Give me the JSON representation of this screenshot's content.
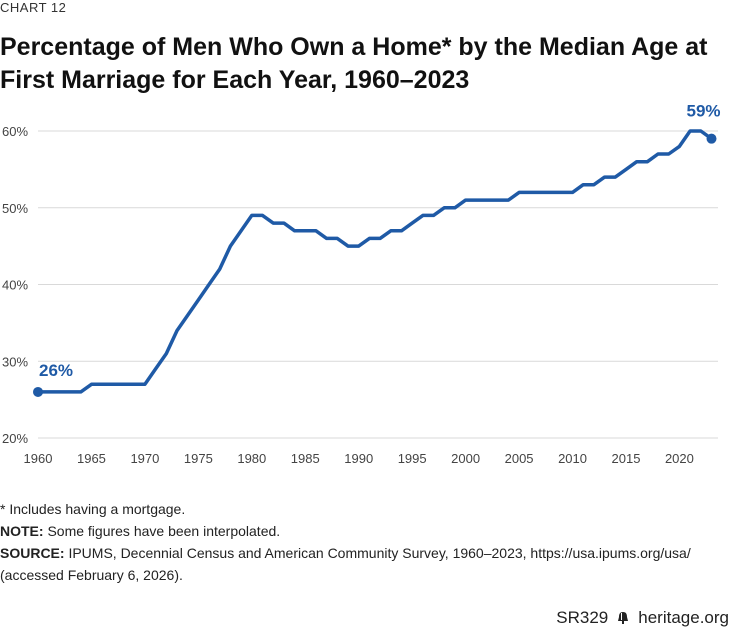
{
  "chart_label": "CHART 12",
  "chart_data": {
    "type": "line",
    "title": "Percentage of Men Who Own a Home* by the Median Age at First Marriage for Each Year, 1960–2023",
    "xlabel": "",
    "ylabel": "",
    "xlim": [
      1960,
      2023
    ],
    "ylim": [
      20,
      60
    ],
    "xticks": [
      "1960",
      "1965",
      "1970",
      "1975",
      "1980",
      "1985",
      "1990",
      "1995",
      "2000",
      "2005",
      "2010",
      "2015",
      "2020"
    ],
    "yticks": [
      "20%",
      "30%",
      "40%",
      "50%",
      "60%"
    ],
    "grid": true,
    "color": "#1f5aa6",
    "series": [
      {
        "x": [
          1960,
          1961,
          1962,
          1963,
          1964,
          1965,
          1966,
          1967,
          1968,
          1969,
          1970,
          1971,
          1972,
          1973,
          1974,
          1975,
          1976,
          1977,
          1978,
          1979,
          1980,
          1981,
          1982,
          1983,
          1984,
          1985,
          1986,
          1987,
          1988,
          1989,
          1990,
          1991,
          1992,
          1993,
          1994,
          1995,
          1996,
          1997,
          1998,
          1999,
          2000,
          2001,
          2002,
          2003,
          2004,
          2005,
          2006,
          2007,
          2008,
          2009,
          2010,
          2011,
          2012,
          2013,
          2014,
          2015,
          2016,
          2017,
          2018,
          2019,
          2020,
          2021,
          2022,
          2023
        ],
        "values": [
          26,
          26,
          26,
          26,
          26,
          27,
          27,
          27,
          27,
          27,
          27,
          29,
          31,
          34,
          36,
          38,
          40,
          42,
          45,
          47,
          49,
          49,
          48,
          48,
          47,
          47,
          47,
          46,
          46,
          45,
          45,
          46,
          46,
          47,
          47,
          48,
          49,
          49,
          50,
          50,
          51,
          51,
          51,
          51,
          51,
          52,
          52,
          52,
          52,
          52,
          52,
          53,
          53,
          54,
          54,
          55,
          56,
          56,
          57,
          57,
          58,
          60,
          60,
          59
        ]
      }
    ],
    "annotations": [
      {
        "text": "26%",
        "x": 1960,
        "y": 26
      },
      {
        "text": "59%",
        "x": 2023,
        "y": 59
      }
    ]
  },
  "notes": {
    "asterisk": "* Includes having a mortgage.",
    "note_label": "NOTE:",
    "note_text": " Some figures have been interpolated.",
    "source_label": "SOURCE:",
    "source_text": " IPUMS, Decennial Census and American Community Survey, 1960–2023, https://usa.ipums.org/usa/ (accessed February 6, 2026)."
  },
  "footer": {
    "report_id": "SR329",
    "site": "heritage.org",
    "bell_icon": "liberty-bell-icon"
  }
}
